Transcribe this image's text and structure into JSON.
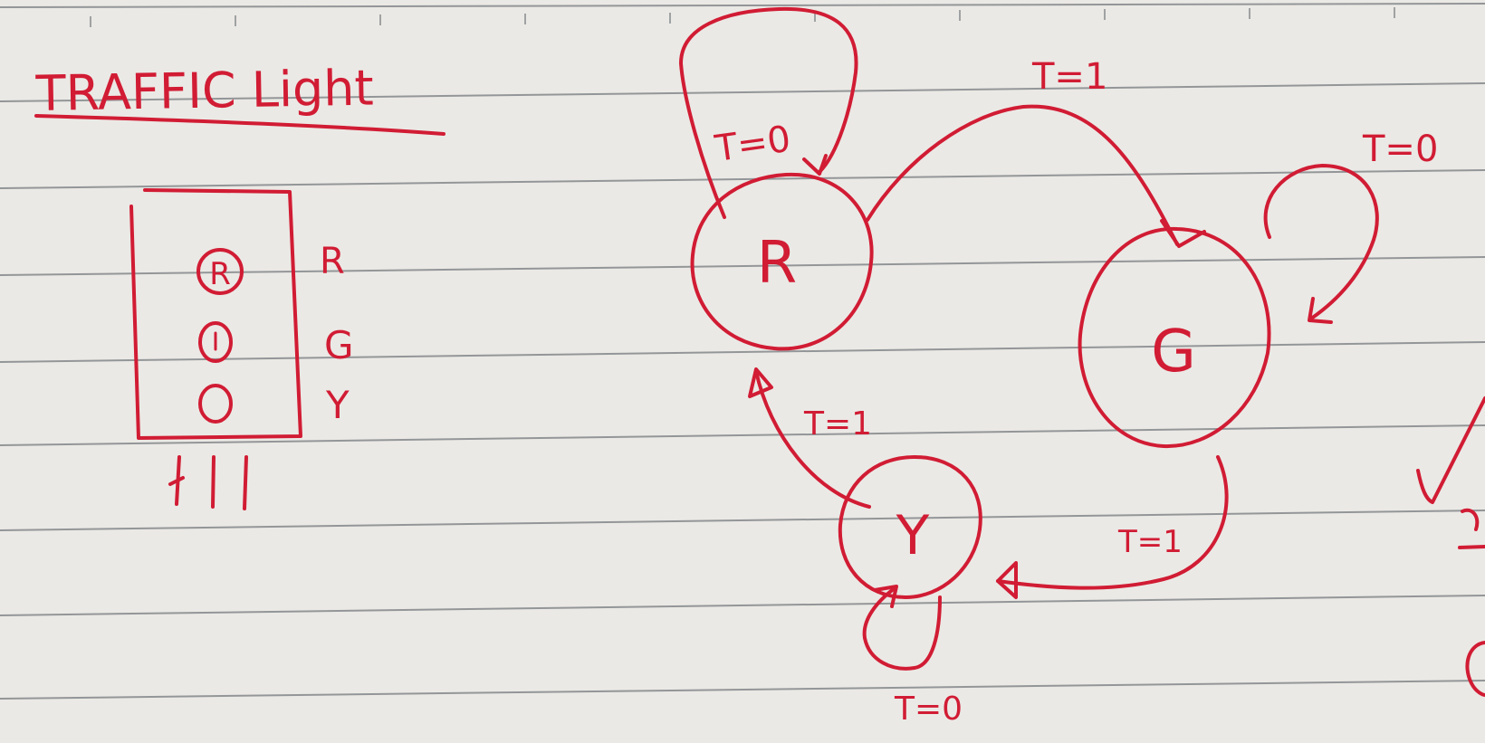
{
  "colors": {
    "paper": "#ebe9e5",
    "rule": "#6e7378",
    "ink": "#d11c34"
  },
  "title": "TRAFFIC Light",
  "light_box": {
    "lamps": [
      {
        "id": "red",
        "side_label": "R",
        "lamp_letter": "R"
      },
      {
        "id": "green",
        "side_label": "G",
        "lamp_letter": ""
      },
      {
        "id": "yellow",
        "side_label": "Y",
        "lamp_letter": ""
      }
    ]
  },
  "state_diagram": {
    "states": [
      {
        "id": "R",
        "label": "R"
      },
      {
        "id": "G",
        "label": "G"
      },
      {
        "id": "Y",
        "label": "Y"
      }
    ],
    "transitions": [
      {
        "from": "R",
        "to": "R",
        "label": "T=0"
      },
      {
        "from": "R",
        "to": "G",
        "label": "T=1"
      },
      {
        "from": "G",
        "to": "G",
        "label": "T=0"
      },
      {
        "from": "G",
        "to": "Y",
        "label": "T=1"
      },
      {
        "from": "Y",
        "to": "Y",
        "label": "T=0"
      },
      {
        "from": "Y",
        "to": "R",
        "label": "T=1"
      }
    ]
  }
}
